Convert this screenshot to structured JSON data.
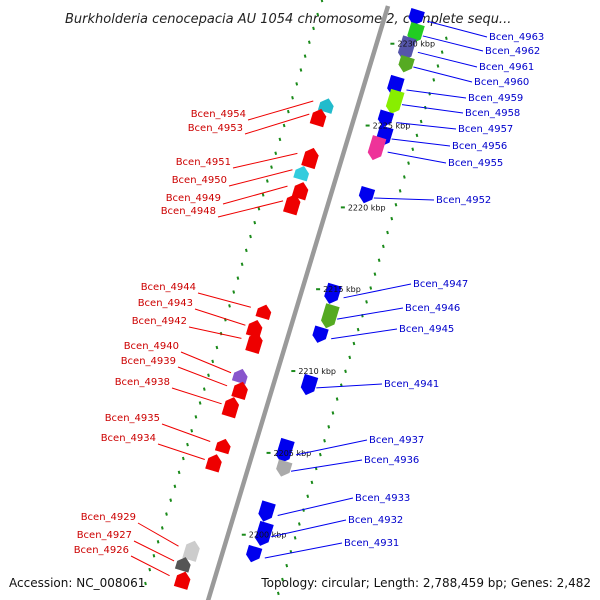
{
  "title": "Burkholderia cenocepacia AU 1054 chromosome 2, complete sequ...",
  "accession": "Accession: NC_008061",
  "summary": "Topology: circular; Length: 2,788,459 bp; Genes: 2,482",
  "colors": {
    "forward": "#0000ee",
    "reverse": "#ee0000",
    "backbone": "#9a9a9a",
    "ruler_dash": "#1a8a1a"
  },
  "kbp_ticks": [
    {
      "label": "2230 kbp",
      "pos": 2230.0
    },
    {
      "label": "2225 kbp",
      "pos": 2225.0
    },
    {
      "label": "2220 kbp",
      "pos": 2220.0
    },
    {
      "label": "2215 kbp",
      "pos": 2215.0
    },
    {
      "label": "2210 kbp",
      "pos": 2210.0
    },
    {
      "label": "2205 kbp",
      "pos": 2205.0
    },
    {
      "label": "2200 kbp",
      "pos": 2200.0
    }
  ],
  "genes_right": [
    {
      "name": "Bcen_4963",
      "pos": 2231.8
    },
    {
      "name": "Bcen_4962",
      "pos": 2230.9
    },
    {
      "name": "Bcen_4961",
      "pos": 2229.9
    },
    {
      "name": "Bcen_4960",
      "pos": 2229.0
    },
    {
      "name": "Bcen_4959",
      "pos": 2227.6
    },
    {
      "name": "Bcen_4958",
      "pos": 2226.7
    },
    {
      "name": "Bcen_4957",
      "pos": 2225.6
    },
    {
      "name": "Bcen_4956",
      "pos": 2224.6
    },
    {
      "name": "Bcen_4955",
      "pos": 2223.8
    },
    {
      "name": "Bcen_4952",
      "pos": 2221.0
    },
    {
      "name": "Bcen_4947",
      "pos": 2214.9
    },
    {
      "name": "Bcen_4946",
      "pos": 2213.6
    },
    {
      "name": "Bcen_4945",
      "pos": 2212.4
    },
    {
      "name": "Bcen_4941",
      "pos": 2209.4
    },
    {
      "name": "Bcen_4937",
      "pos": 2205.3
    },
    {
      "name": "Bcen_4936",
      "pos": 2204.3
    },
    {
      "name": "Bcen_4933",
      "pos": 2201.6
    },
    {
      "name": "Bcen_4932",
      "pos": 2200.3
    },
    {
      "name": "Bcen_4931",
      "pos": 2199.0
    }
  ],
  "genes_left": [
    {
      "name": "Bcen_4954",
      "pos": 2225.4
    },
    {
      "name": "Bcen_4953",
      "pos": 2224.6
    },
    {
      "name": "Bcen_4951",
      "pos": 2222.2
    },
    {
      "name": "Bcen_4950",
      "pos": 2221.2
    },
    {
      "name": "Bcen_4949",
      "pos": 2220.2
    },
    {
      "name": "Bcen_4948",
      "pos": 2219.3
    },
    {
      "name": "Bcen_4944",
      "pos": 2212.8
    },
    {
      "name": "Bcen_4943",
      "pos": 2211.7
    },
    {
      "name": "Bcen_4942",
      "pos": 2210.9
    },
    {
      "name": "Bcen_4940",
      "pos": 2208.8
    },
    {
      "name": "Bcen_4939",
      "pos": 2208.0
    },
    {
      "name": "Bcen_4938",
      "pos": 2206.9
    },
    {
      "name": "Bcen_4935",
      "pos": 2204.6
    },
    {
      "name": "Bcen_4934",
      "pos": 2203.5
    },
    {
      "name": "Bcen_4929",
      "pos": 2198.2
    },
    {
      "name": "Bcen_4927",
      "pos": 2197.3
    },
    {
      "name": "Bcen_4926",
      "pos": 2196.4
    }
  ]
}
